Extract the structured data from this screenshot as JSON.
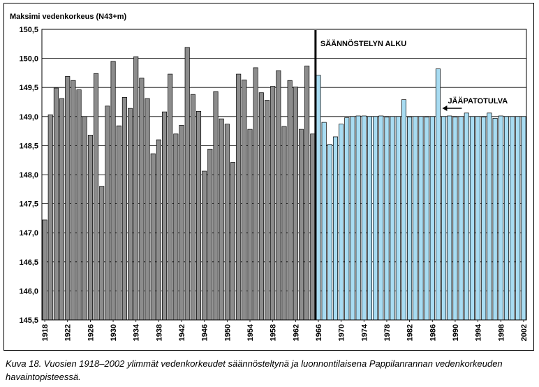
{
  "chart_data": {
    "type": "bar",
    "ylabel": "Maksimi vedenkorkeus (N43+m)",
    "ylim": [
      145.5,
      150.5
    ],
    "ytick_step": 0.5,
    "ytick_labels": [
      "145,5",
      "146,0",
      "146,5",
      "147,0",
      "147,5",
      "148,0",
      "148,5",
      "149,0",
      "149,5",
      "150,0",
      "150,5"
    ],
    "grid": "horizontal",
    "x_start": 1918,
    "x_end": 2002,
    "xtick_labels": [
      "1918",
      "1922",
      "1926",
      "1930",
      "1934",
      "1938",
      "1942",
      "1946",
      "1950",
      "1954",
      "1958",
      "1962",
      "1966",
      "1970",
      "1974",
      "1978",
      "1982",
      "1986",
      "1990",
      "1994",
      "1998",
      "2002"
    ],
    "series": [
      {
        "role": "natural",
        "color": "#8c8c8c",
        "x": [
          1918,
          1919,
          1920,
          1921,
          1922,
          1923,
          1924,
          1925,
          1926,
          1927,
          1928,
          1929,
          1930,
          1931,
          1932,
          1933,
          1934,
          1935,
          1936,
          1937,
          1938,
          1939,
          1940,
          1941,
          1942,
          1943,
          1944,
          1945,
          1946,
          1947,
          1948,
          1949,
          1950,
          1951,
          1952,
          1953,
          1954,
          1955,
          1956,
          1957,
          1958,
          1959,
          1960,
          1961,
          1962,
          1963,
          1964,
          1965
        ],
        "values": [
          147.22,
          149.03,
          149.49,
          149.31,
          149.69,
          149.62,
          149.46,
          149.0,
          148.68,
          149.74,
          147.8,
          149.18,
          149.95,
          148.84,
          149.33,
          149.14,
          150.03,
          149.66,
          149.31,
          148.36,
          148.6,
          149.08,
          149.73,
          148.7,
          148.85,
          150.19,
          149.38,
          149.09,
          148.06,
          148.44,
          149.43,
          148.96,
          148.87,
          148.21,
          149.73,
          149.63,
          148.78,
          149.84,
          149.41,
          149.28,
          149.52,
          149.79,
          148.83,
          149.62,
          149.51,
          148.78,
          149.87,
          148.7
        ]
      },
      {
        "role": "regulated",
        "color": "#a8dcf2",
        "x": [
          1966,
          1967,
          1968,
          1969,
          1970,
          1971,
          1972,
          1973,
          1974,
          1975,
          1976,
          1977,
          1978,
          1979,
          1980,
          1981,
          1982,
          1983,
          1984,
          1985,
          1986,
          1987,
          1988,
          1989,
          1990,
          1991,
          1992,
          1993,
          1994,
          1995,
          1996,
          1997,
          1998,
          1999,
          2000,
          2001,
          2002
        ],
        "values": [
          149.71,
          148.9,
          148.52,
          148.65,
          148.87,
          148.98,
          149.0,
          149.01,
          149.01,
          149.0,
          149.0,
          149.01,
          148.99,
          149.0,
          149.0,
          149.29,
          148.99,
          149.0,
          149.0,
          148.99,
          149.0,
          149.82,
          149.0,
          149.01,
          148.99,
          149.0,
          149.06,
          149.0,
          149.0,
          148.99,
          149.06,
          148.97,
          149.01,
          149.0,
          149.0,
          149.0,
          149.0
        ]
      }
    ],
    "annotations": {
      "start_label": "SÄÄNNÖSTELYN ALKU",
      "start_year": 1965.5,
      "ice_label": "JÄÄPATOTULVA",
      "ice_year": 1987
    }
  },
  "caption": "Kuva 18. Vuosien 1918–2002 ylimmät vedenkorkeudet säännösteltynä ja luonnontilaisena Pappilanrannan vedenkorkeuden havaintopisteessä."
}
